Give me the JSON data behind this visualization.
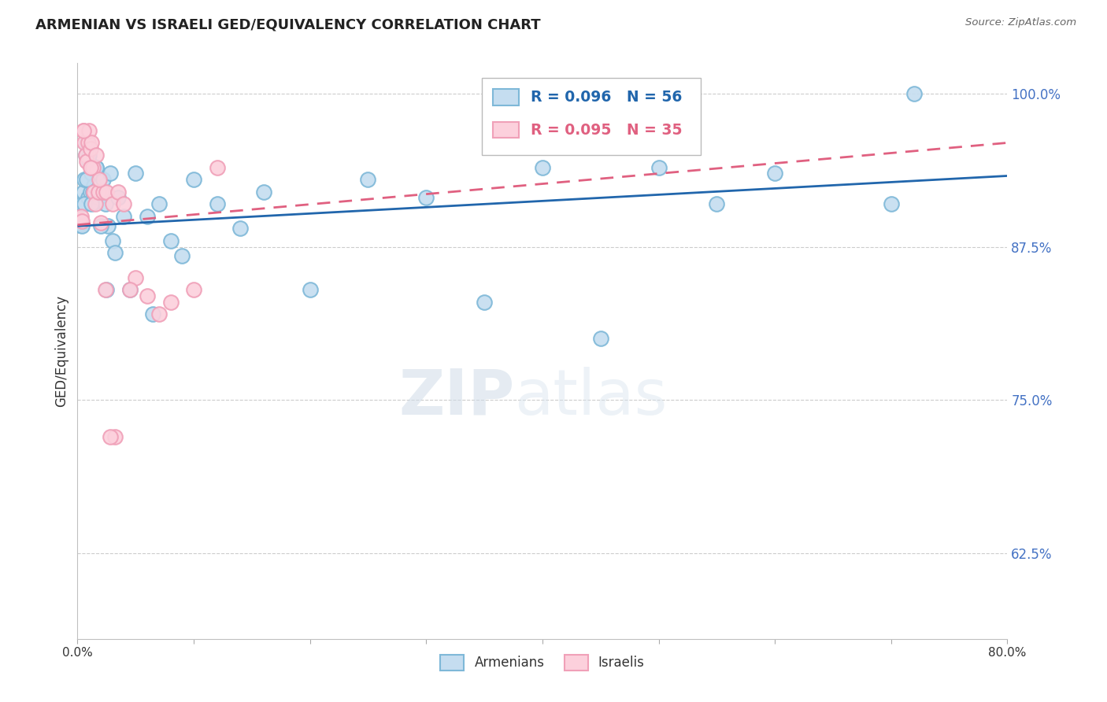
{
  "title": "ARMENIAN VS ISRAELI GED/EQUIVALENCY CORRELATION CHART",
  "source": "Source: ZipAtlas.com",
  "ylabel": "GED/Equivalency",
  "ytick_labels": [
    "100.0%",
    "87.5%",
    "75.0%",
    "62.5%"
  ],
  "ytick_values": [
    1.0,
    0.875,
    0.75,
    0.625
  ],
  "watermark_zip": "ZIP",
  "watermark_atlas": "atlas",
  "legend_armenians": "Armenians",
  "legend_israelis": "Israelis",
  "R_armenians": "R = 0.096",
  "N_armenians": "N = 56",
  "R_israelis": "R = 0.095",
  "N_israelis": "N = 35",
  "blue_edge": "#7eb8d8",
  "blue_dark": "#2166ac",
  "pink_edge": "#f0a0b8",
  "pink_dark": "#e06080",
  "blue_fill": "#c5ddf0",
  "pink_fill": "#fcd0dc",
  "armenian_x": [
    0.2,
    0.3,
    0.4,
    0.5,
    0.6,
    0.7,
    0.8,
    0.9,
    1.0,
    1.1,
    1.2,
    1.3,
    1.4,
    1.5,
    1.6,
    1.7,
    1.8,
    2.0,
    2.2,
    2.4,
    2.6,
    2.8,
    3.0,
    3.5,
    4.0,
    5.0,
    6.0,
    7.0,
    8.0,
    9.0,
    10.0,
    12.0,
    14.0,
    16.0,
    20.0,
    25.0,
    30.0,
    35.0,
    40.0,
    45.0,
    50.0,
    55.0,
    60.0,
    70.0,
    72.0,
    0.4,
    0.6,
    0.8,
    1.0,
    1.2,
    1.6,
    2.0,
    2.5,
    3.2,
    4.5,
    6.5
  ],
  "armenian_y": [
    0.893,
    0.894,
    0.91,
    0.92,
    0.93,
    0.95,
    0.96,
    0.915,
    0.945,
    0.92,
    0.935,
    0.92,
    0.925,
    0.912,
    0.94,
    0.935,
    0.915,
    0.92,
    0.93,
    0.91,
    0.892,
    0.935,
    0.88,
    0.915,
    0.9,
    0.935,
    0.9,
    0.91,
    0.88,
    0.868,
    0.93,
    0.91,
    0.89,
    0.92,
    0.84,
    0.93,
    0.915,
    0.83,
    0.94,
    0.8,
    0.94,
    0.91,
    0.935,
    0.91,
    1.0,
    0.892,
    0.91,
    0.93,
    0.95,
    0.91,
    0.94,
    0.892,
    0.84,
    0.87,
    0.84,
    0.82
  ],
  "israeli_x": [
    0.2,
    0.3,
    0.4,
    0.5,
    0.6,
    0.7,
    0.8,
    0.9,
    1.0,
    1.1,
    1.2,
    1.3,
    1.4,
    1.5,
    1.6,
    1.8,
    2.0,
    2.2,
    2.5,
    3.0,
    3.5,
    4.0,
    5.0,
    6.0,
    8.0,
    10.0,
    12.0,
    3.2,
    2.8,
    1.9,
    0.5,
    1.1,
    2.4,
    4.5,
    7.0
  ],
  "israeli_y": [
    0.897,
    0.9,
    0.896,
    0.97,
    0.96,
    0.95,
    0.945,
    0.96,
    0.97,
    0.955,
    0.96,
    0.94,
    0.92,
    0.91,
    0.95,
    0.92,
    0.895,
    0.92,
    0.92,
    0.91,
    0.92,
    0.91,
    0.85,
    0.835,
    0.83,
    0.84,
    0.94,
    0.72,
    0.72,
    0.93,
    0.97,
    0.94,
    0.84,
    0.84,
    0.82
  ],
  "xmin": 0.0,
  "xmax": 80.0,
  "ymin": 0.555,
  "ymax": 1.025,
  "arm_trend_x0": 0.0,
  "arm_trend_y0": 0.892,
  "arm_trend_x1": 80.0,
  "arm_trend_y1": 0.933,
  "isr_trend_x0": 0.0,
  "isr_trend_y0": 0.893,
  "isr_trend_x1": 80.0,
  "isr_trend_y1": 0.96
}
